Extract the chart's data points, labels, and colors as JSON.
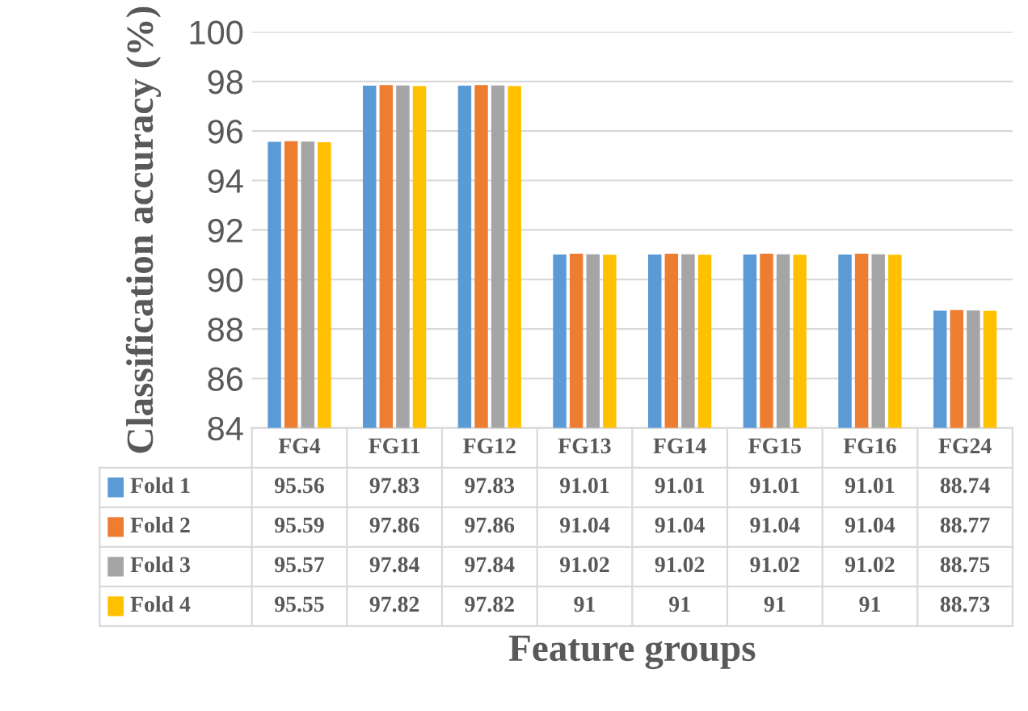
{
  "chart_data": {
    "type": "bar",
    "xlabel": "Feature groups",
    "ylabel": "Classification accuracy (%)",
    "categories": [
      "FG4",
      "FG11",
      "FG12",
      "FG13",
      "FG14",
      "FG15",
      "FG16",
      "FG24"
    ],
    "series": [
      {
        "name": "Fold 1",
        "color": "#5b9bd5",
        "values": [
          95.56,
          97.83,
          97.83,
          91.01,
          91.01,
          91.01,
          91.01,
          88.74
        ]
      },
      {
        "name": "Fold 2",
        "color": "#ed7d31",
        "values": [
          95.59,
          97.86,
          97.86,
          91.04,
          91.04,
          91.04,
          91.04,
          88.77
        ]
      },
      {
        "name": "Fold 3",
        "color": "#a5a5a5",
        "values": [
          95.57,
          97.84,
          97.84,
          91.02,
          91.02,
          91.02,
          91.02,
          88.75
        ]
      },
      {
        "name": "Fold 4",
        "color": "#ffc000",
        "values": [
          95.55,
          97.82,
          97.82,
          91,
          91,
          91,
          91,
          88.73
        ]
      }
    ],
    "ylim": [
      84,
      100
    ],
    "yticks": [
      84,
      86,
      88,
      90,
      92,
      94,
      96,
      98,
      100
    ],
    "grid": "y",
    "legend": "bottom",
    "data_labels": true
  }
}
